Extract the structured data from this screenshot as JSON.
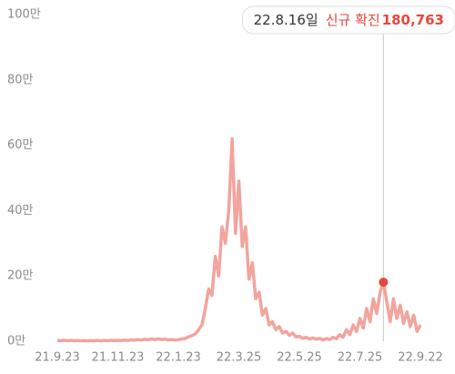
{
  "chart_data": {
    "type": "line",
    "categories": [
      "21.9.23",
      null,
      null,
      null,
      null,
      null,
      null,
      null,
      null,
      null,
      null,
      null,
      null,
      null,
      null,
      null,
      null,
      null,
      "21.11.23",
      null,
      null,
      null,
      null,
      null,
      null,
      null,
      null,
      null,
      null,
      null,
      null,
      null,
      null,
      null,
      null,
      null,
      "22.1.23",
      null,
      null,
      null,
      null,
      null,
      null,
      null,
      null,
      null,
      null,
      null,
      null,
      null,
      null,
      null,
      null,
      null,
      "22.3.25",
      null,
      null,
      null,
      null,
      null,
      null,
      null,
      null,
      null,
      null,
      null,
      null,
      null,
      null,
      null,
      null,
      null,
      "22.5.25",
      null,
      null,
      null,
      null,
      null,
      null,
      null,
      null,
      null,
      null,
      null,
      null,
      null,
      null,
      null,
      null,
      null,
      "22.7.25",
      null,
      null,
      null,
      null,
      null,
      null,
      null,
      null,
      null,
      null,
      null,
      null,
      null,
      null,
      null,
      null,
      null,
      "22.9.22"
    ],
    "series": [
      {
        "color": "#f2a49d",
        "values": [
          2500,
          1500,
          3000,
          1800,
          2800,
          1500,
          2200,
          1400,
          1800,
          1200,
          2000,
          1300,
          2400,
          1500,
          2600,
          1800,
          2800,
          2000,
          2700,
          2200,
          3500,
          2600,
          4200,
          3000,
          5000,
          3500,
          6000,
          4200,
          7000,
          5000,
          7500,
          5200,
          6500,
          4500,
          5000,
          3500,
          4500,
          7000,
          8000,
          13000,
          17000,
          22000,
          35000,
          50000,
          100000,
          160000,
          140000,
          260000,
          200000,
          350000,
          300000,
          400000,
          620000,
          330000,
          490000,
          290000,
          350000,
          190000,
          240000,
          130000,
          150000,
          80000,
          100000,
          50000,
          60000,
          35000,
          45000,
          25000,
          30000,
          18000,
          25000,
          13000,
          15000,
          9000,
          12000,
          7000,
          10000,
          6000,
          9000,
          4000,
          8000,
          5000,
          12000,
          8000,
          20000,
          12000,
          35000,
          20000,
          50000,
          30000,
          70000,
          40000,
          100000,
          60000,
          130000,
          85000,
          150000,
          180763,
          120000,
          60000,
          130000,
          70000,
          110000,
          55000,
          90000,
          45000,
          80000,
          30000,
          50000
        ]
      }
    ],
    "ylim": [
      0,
      1000000
    ],
    "yticks": [
      {
        "value": 0,
        "label": "0만"
      },
      {
        "value": 200000,
        "label": "20만"
      },
      {
        "value": 400000,
        "label": "40만"
      },
      {
        "value": 600000,
        "label": "60만"
      },
      {
        "value": 800000,
        "label": "80만"
      },
      {
        "value": 1000000,
        "label": "100만"
      }
    ],
    "highlight": {
      "date": "22.8.16일",
      "label": "신규 확진",
      "value": 180763,
      "value_label": "180,763",
      "color": "#e8463c"
    }
  }
}
